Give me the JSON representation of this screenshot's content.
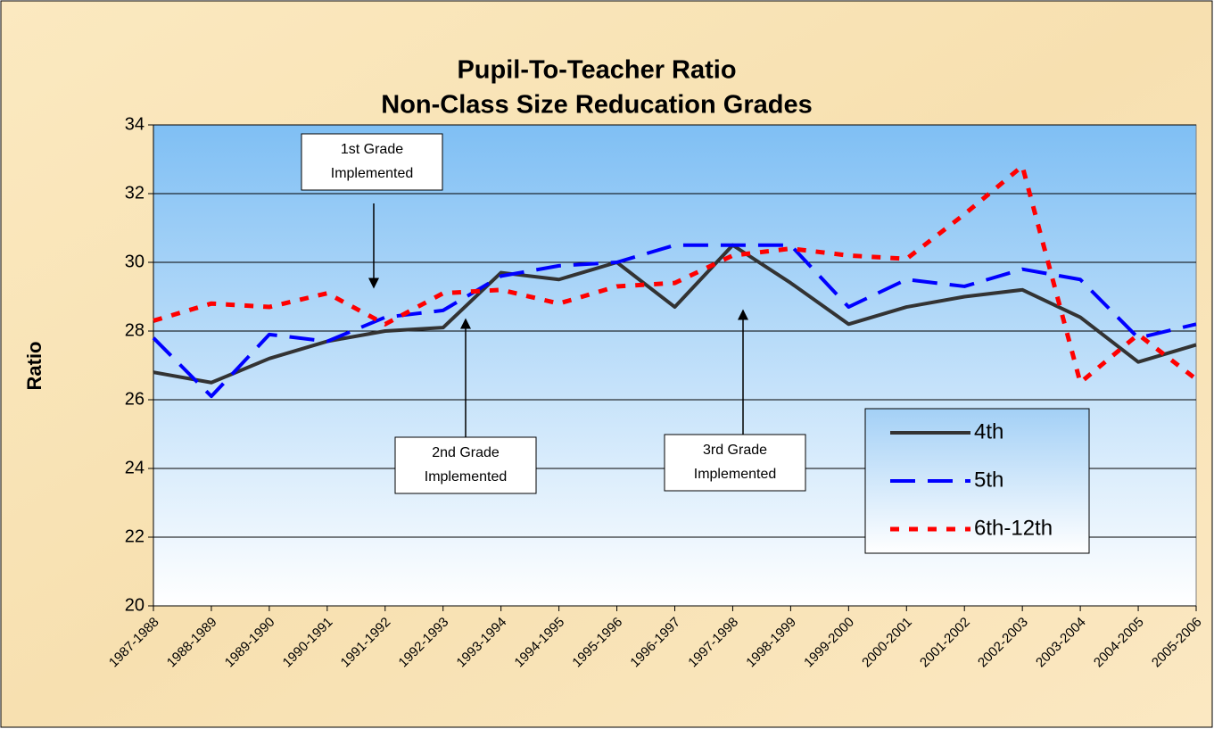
{
  "chart_data": {
    "type": "line",
    "title": "Pupil-To-Teacher Ratio",
    "subtitle": "Non-Class Size Reducation Grades",
    "ylabel": "Ratio",
    "categories": [
      "1987-1988",
      "1988-1989",
      "1989-1990",
      "1990-1991",
      "1991-1992",
      "1992-1993",
      "1993-1994",
      "1994-1995",
      "1995-1996",
      "1996-1997",
      "1997-1998",
      "1998-1999",
      "1999-2000",
      "2000-2001",
      "2001-2002",
      "2002-2003",
      "2003-2004",
      "2004-2005",
      "2005-2006"
    ],
    "series": [
      {
        "name": "4th",
        "color": "#333333",
        "values": [
          26.8,
          26.5,
          27.2,
          27.7,
          28.0,
          28.1,
          29.7,
          29.5,
          30.0,
          28.7,
          30.5,
          29.4,
          28.2,
          28.7,
          29.0,
          29.2,
          28.4,
          27.1,
          27.6
        ]
      },
      {
        "name": "5th",
        "color": "#0000ff",
        "values": [
          27.8,
          26.1,
          27.9,
          27.7,
          28.4,
          28.6,
          29.6,
          29.9,
          30.0,
          30.5,
          30.5,
          30.5,
          28.7,
          29.5,
          29.3,
          29.8,
          29.5,
          27.8,
          28.2
        ]
      },
      {
        "name": "6th-12th",
        "color": "#ff0000",
        "values": [
          28.3,
          28.8,
          28.7,
          29.1,
          28.2,
          29.1,
          29.2,
          28.8,
          29.3,
          29.4,
          30.2,
          30.4,
          30.2,
          30.1,
          31.4,
          32.8,
          26.5,
          27.9,
          26.6
        ]
      }
    ],
    "ylim": [
      20,
      34
    ],
    "yticks": [
      20,
      22,
      24,
      26,
      28,
      30,
      32,
      34
    ],
    "grid": true,
    "legend": "right",
    "annotations": [
      {
        "lines": [
          "1st Grade",
          "Implemented"
        ]
      },
      {
        "lines": [
          "2nd Grade",
          "Implemented"
        ]
      },
      {
        "lines": [
          "3rd Grade",
          "Implemented"
        ]
      }
    ]
  }
}
